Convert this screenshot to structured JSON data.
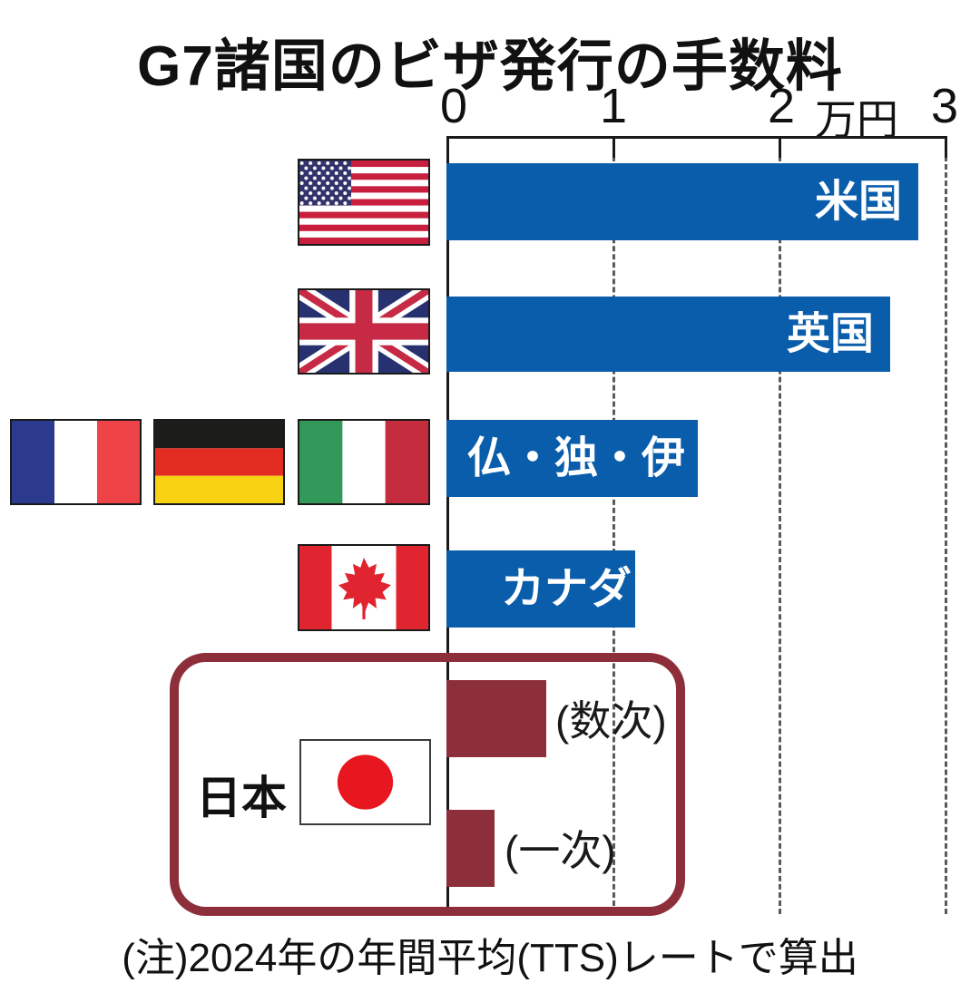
{
  "title": "G7諸国のビザ発行の手数料",
  "note": "(注)2024年の年間平均(TTS)レートで算出",
  "axis": {
    "tick_labels": [
      "0",
      "1",
      "2",
      "3"
    ],
    "unit_label": "万円",
    "min": 0,
    "max": 3
  },
  "chart_data": {
    "type": "bar",
    "orientation": "horizontal",
    "title": "G7諸国のビザ発行の手数料",
    "x_unit": "万円",
    "xlim": [
      0,
      3
    ],
    "x_ticks": [
      0,
      1,
      2,
      3
    ],
    "grid": "vertical-dashed",
    "legend": "none",
    "note": "(注)2024年の年間平均(TTS)レートで算出",
    "rows": [
      {
        "country": "米国",
        "label": "米国",
        "flag": "united-states",
        "value_man_yen": 2.83,
        "bar_color": "#0a5dab"
      },
      {
        "country": "英国",
        "label": "英国",
        "flag": "united-kingdom",
        "value_man_yen": 2.66,
        "bar_color": "#0a5dab"
      },
      {
        "country": "仏・独・伊",
        "label": "仏・独・伊",
        "flag": "france, germany, italy",
        "value_man_yen": 1.51,
        "bar_color": "#0a5dab"
      },
      {
        "country": "カナダ",
        "label": "カナダ",
        "flag": "canada",
        "value_man_yen": 1.13,
        "bar_color": "#0a5dab"
      },
      {
        "country": "日本",
        "label": "(数次)",
        "flag": "japan",
        "visa_type": "数次",
        "value_man_yen": 0.6,
        "bar_color": "#8d2f3a",
        "group": "日本"
      },
      {
        "country": "日本",
        "label": "(一次)",
        "flag": "japan",
        "visa_type": "一次",
        "value_man_yen": 0.29,
        "bar_color": "#8d2f3a",
        "group": "日本"
      }
    ],
    "japan_group": {
      "label": "日本",
      "box_color": "#8d2f3a"
    }
  },
  "colors": {
    "bar_blue": "#0a5dab",
    "bar_maroon": "#8d2f3a",
    "grid_dash": "#5a5a5a",
    "axis": "#1a1a1a",
    "text": "#111111",
    "bar_label_white": "#ffffff"
  }
}
